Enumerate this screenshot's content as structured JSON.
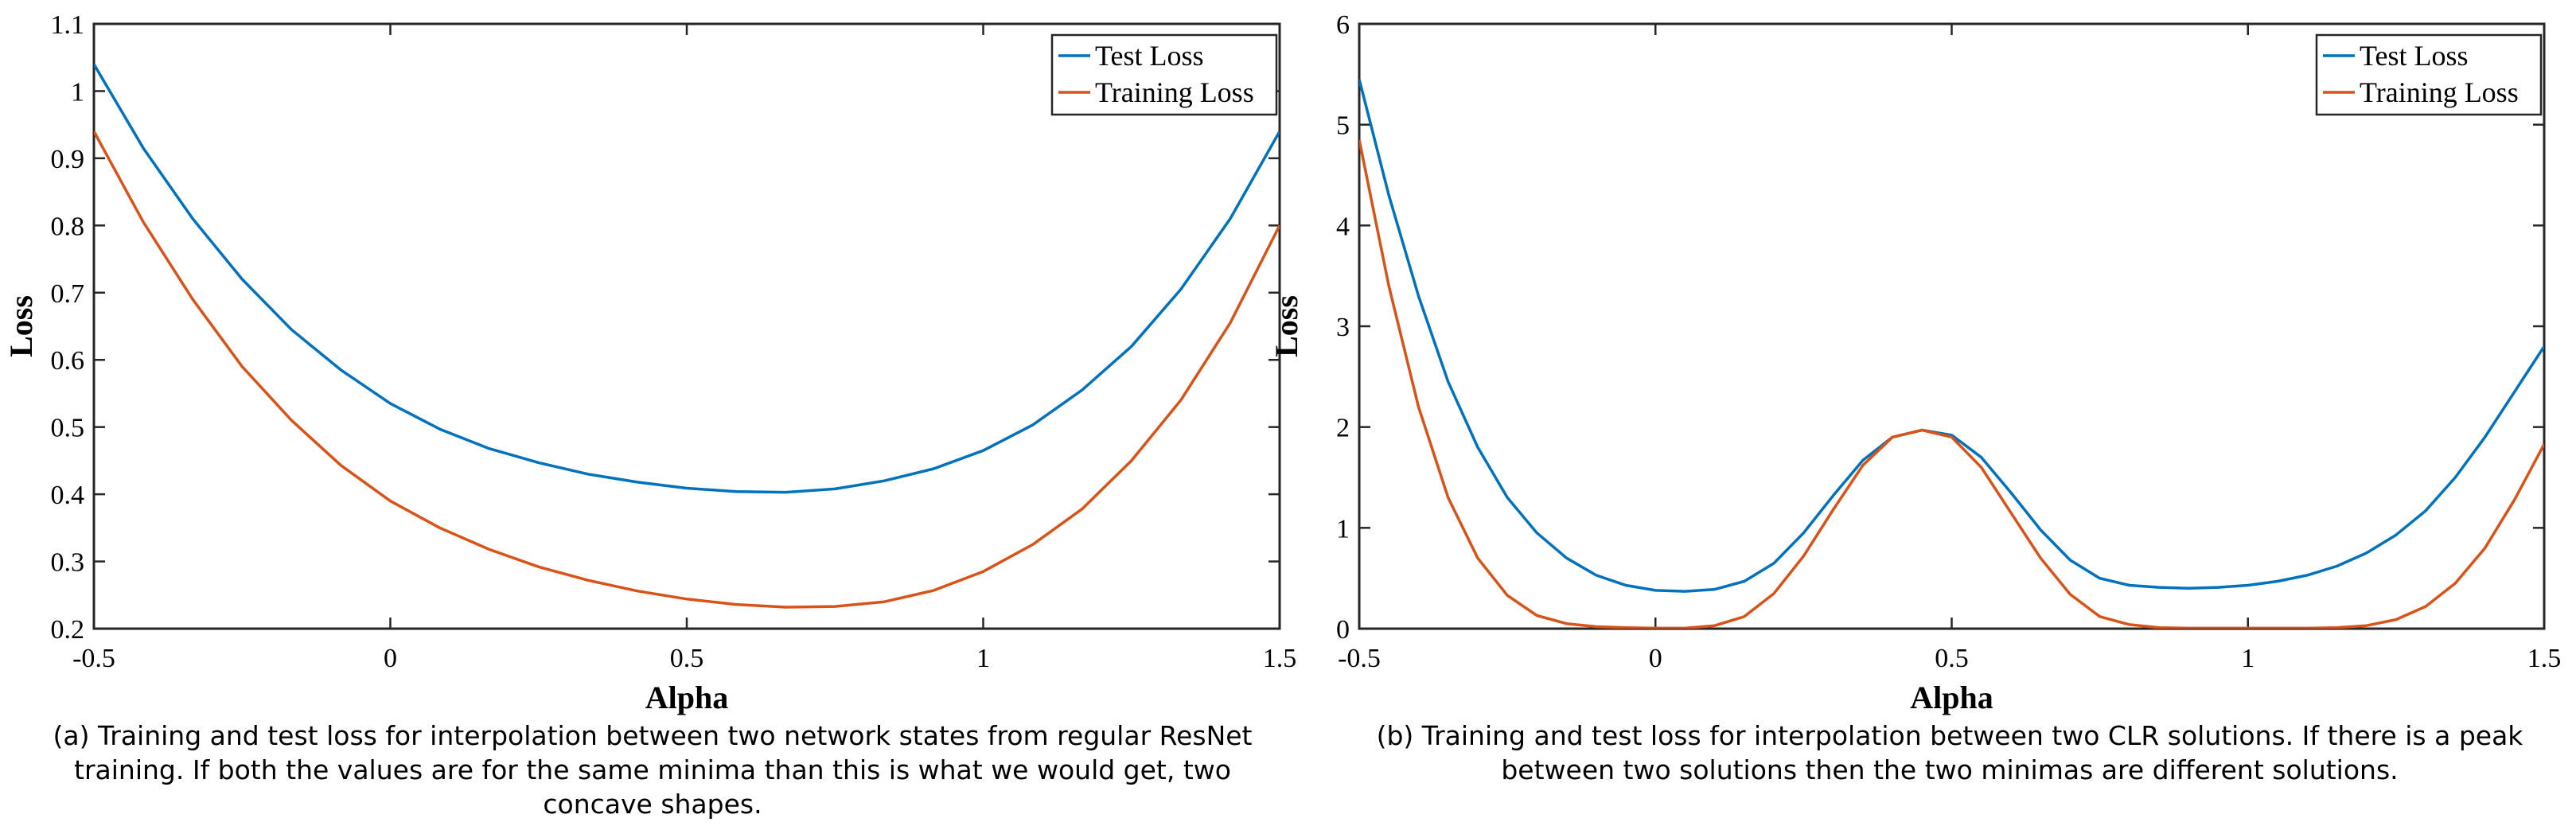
{
  "captions": {
    "a": "(a) Training and test loss for interpolation between two network states from regular ResNet training. If both the values are for the same minima than this is what we would get, two concave shapes.",
    "b": "(b) Training and test loss for interpolation between two CLR solutions. If there is a peak between two solutions then the two minimas are different solutions."
  },
  "chart_data": [
    {
      "type": "line",
      "xlabel": "Alpha",
      "ylabel": "Loss",
      "xlim": [
        -0.5,
        1.5
      ],
      "ylim": [
        0.2,
        1.1
      ],
      "xticks": [
        -0.5,
        0,
        0.5,
        1,
        1.5
      ],
      "xtick_labels": [
        "-0.5",
        "0",
        "0.5",
        "1",
        "1.5"
      ],
      "yticks": [
        0.2,
        0.3,
        0.4,
        0.5,
        0.6,
        0.7,
        0.8,
        0.9,
        1.0,
        1.1
      ],
      "ytick_labels": [
        "0.2",
        "0.3",
        "0.4",
        "0.5",
        "0.6",
        "0.7",
        "0.8",
        "0.9",
        "1",
        "1.1"
      ],
      "legend_position": "top-right",
      "grid": false,
      "x": [
        -0.5,
        -0.4167,
        -0.3333,
        -0.25,
        -0.1667,
        -0.0833,
        0.0,
        0.0833,
        0.1667,
        0.25,
        0.3333,
        0.4167,
        0.5,
        0.5833,
        0.6667,
        0.75,
        0.8333,
        0.9167,
        1.0,
        1.0833,
        1.1667,
        1.25,
        1.3333,
        1.4167,
        1.5
      ],
      "series": [
        {
          "name": "Test Loss",
          "color": "#0072BD",
          "values": [
            1.04,
            0.915,
            0.81,
            0.72,
            0.645,
            0.585,
            0.535,
            0.497,
            0.468,
            0.447,
            0.43,
            0.418,
            0.409,
            0.404,
            0.403,
            0.408,
            0.42,
            0.438,
            0.465,
            0.503,
            0.555,
            0.62,
            0.705,
            0.81,
            0.94
          ]
        },
        {
          "name": "Training Loss",
          "color": "#D95319",
          "values": [
            0.94,
            0.805,
            0.69,
            0.59,
            0.51,
            0.443,
            0.39,
            0.35,
            0.318,
            0.292,
            0.272,
            0.256,
            0.244,
            0.236,
            0.232,
            0.233,
            0.24,
            0.257,
            0.285,
            0.325,
            0.378,
            0.45,
            0.54,
            0.655,
            0.8
          ]
        }
      ]
    },
    {
      "type": "line",
      "xlabel": "Alpha",
      "ylabel": "Loss",
      "xlim": [
        -0.5,
        1.5
      ],
      "ylim": [
        0,
        6
      ],
      "xticks": [
        -0.5,
        0,
        0.5,
        1,
        1.5
      ],
      "xtick_labels": [
        "-0.5",
        "0",
        "0.5",
        "1",
        "1.5"
      ],
      "yticks": [
        0,
        1,
        2,
        3,
        4,
        5,
        6
      ],
      "ytick_labels": [
        "0",
        "1",
        "2",
        "3",
        "4",
        "5",
        "6"
      ],
      "legend_position": "top-right",
      "grid": false,
      "x": [
        -0.5,
        -0.45,
        -0.4,
        -0.35,
        -0.3,
        -0.25,
        -0.2,
        -0.15,
        -0.1,
        -0.05,
        0.0,
        0.05,
        0.1,
        0.15,
        0.2,
        0.25,
        0.3,
        0.35,
        0.4,
        0.45,
        0.5,
        0.55,
        0.6,
        0.65,
        0.7,
        0.75,
        0.8,
        0.85,
        0.9,
        0.95,
        1.0,
        1.05,
        1.1,
        1.15,
        1.2,
        1.25,
        1.3,
        1.35,
        1.4,
        1.45,
        1.5
      ],
      "series": [
        {
          "name": "Test Loss",
          "color": "#0072BD",
          "values": [
            5.45,
            4.3,
            3.3,
            2.45,
            1.8,
            1.3,
            0.95,
            0.7,
            0.53,
            0.43,
            0.38,
            0.37,
            0.39,
            0.47,
            0.65,
            0.95,
            1.32,
            1.67,
            1.9,
            1.97,
            1.92,
            1.7,
            1.35,
            0.98,
            0.68,
            0.5,
            0.43,
            0.41,
            0.4,
            0.41,
            0.43,
            0.47,
            0.53,
            0.62,
            0.75,
            0.93,
            1.17,
            1.5,
            1.9,
            2.35,
            2.8
          ]
        },
        {
          "name": "Training Loss",
          "color": "#D95319",
          "values": [
            4.85,
            3.4,
            2.2,
            1.3,
            0.7,
            0.33,
            0.13,
            0.05,
            0.02,
            0.01,
            0.005,
            0.005,
            0.03,
            0.12,
            0.35,
            0.72,
            1.18,
            1.62,
            1.9,
            1.97,
            1.9,
            1.6,
            1.15,
            0.7,
            0.34,
            0.12,
            0.04,
            0.01,
            0.005,
            0.005,
            0.005,
            0.005,
            0.005,
            0.01,
            0.03,
            0.09,
            0.22,
            0.45,
            0.8,
            1.28,
            1.83
          ]
        }
      ]
    }
  ]
}
